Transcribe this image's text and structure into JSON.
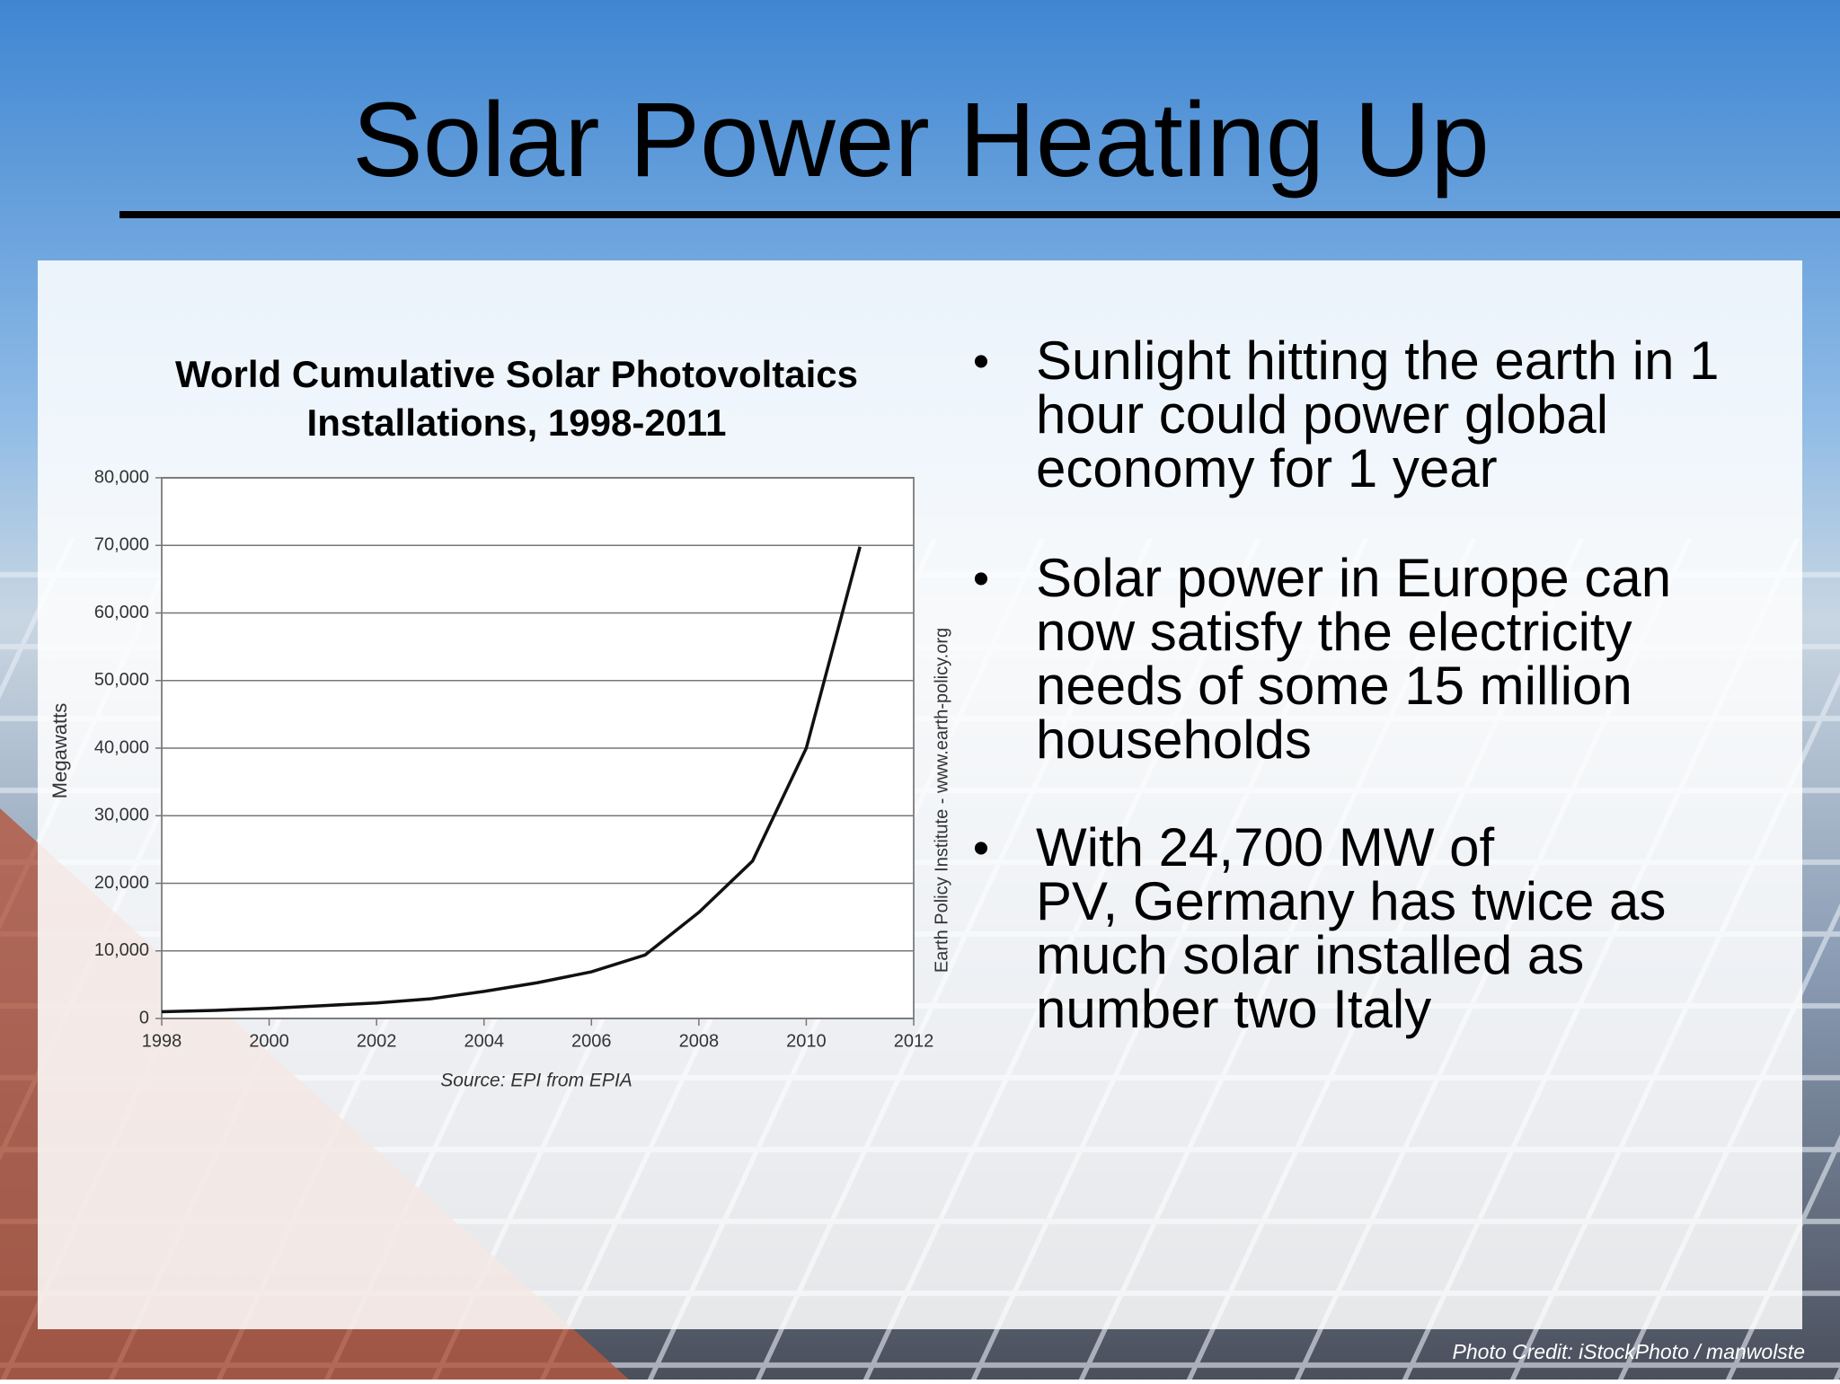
{
  "title": "Solar Power Heating Up",
  "chart_data": {
    "type": "line",
    "title": [
      "World Cumulative Solar Photovoltaics",
      "Installations, 1998-2011"
    ],
    "y_label": "Megawatts",
    "side_note": "Earth Policy Institute - www.earth-policy.org",
    "source": "Source: EPI from EPIA",
    "x": [
      1998,
      1999,
      2000,
      2001,
      2002,
      2003,
      2004,
      2005,
      2006,
      2007,
      2008,
      2009,
      2010,
      2011
    ],
    "values": [
      1000,
      1200,
      1500,
      1900,
      2300,
      2900,
      4000,
      5300,
      6900,
      9400,
      15700,
      23300,
      40000,
      69800
    ],
    "color": "#111111",
    "xlim": [
      1998,
      2012
    ],
    "xticks": [
      1998,
      2000,
      2002,
      2004,
      2006,
      2008,
      2010,
      2012
    ],
    "ylim": [
      0,
      80000
    ],
    "yticks": [
      0,
      {
        "value": 10000,
        "label": "10,000"
      },
      {
        "value": 20000,
        "label": "20,000"
      },
      {
        "value": 30000,
        "label": "30,000"
      },
      {
        "value": 40000,
        "label": "40,000"
      },
      {
        "value": 50000,
        "label": "50,000"
      },
      {
        "value": 60000,
        "label": "60,000"
      },
      {
        "value": 70000,
        "label": "70,000"
      },
      {
        "value": 80000,
        "label": "80,000"
      }
    ],
    "grid": true
  },
  "bullets": [
    {
      "lines": [
        "Sunlight hitting the earth in 1",
        "hour could power global",
        "economy for 1 year"
      ]
    },
    {
      "lines": [
        "Solar power in Europe can",
        "now satisfy the electricity",
        "needs of some 15 million",
        "households"
      ]
    },
    {
      "lines": [
        "With 24,700 MW of",
        "PV, Germany has twice as",
        "much solar installed as",
        "number two Italy"
      ]
    }
  ],
  "bullet_symbol": "•",
  "photo_credit": "Photo Credit: iStockPhoto / manwolste"
}
